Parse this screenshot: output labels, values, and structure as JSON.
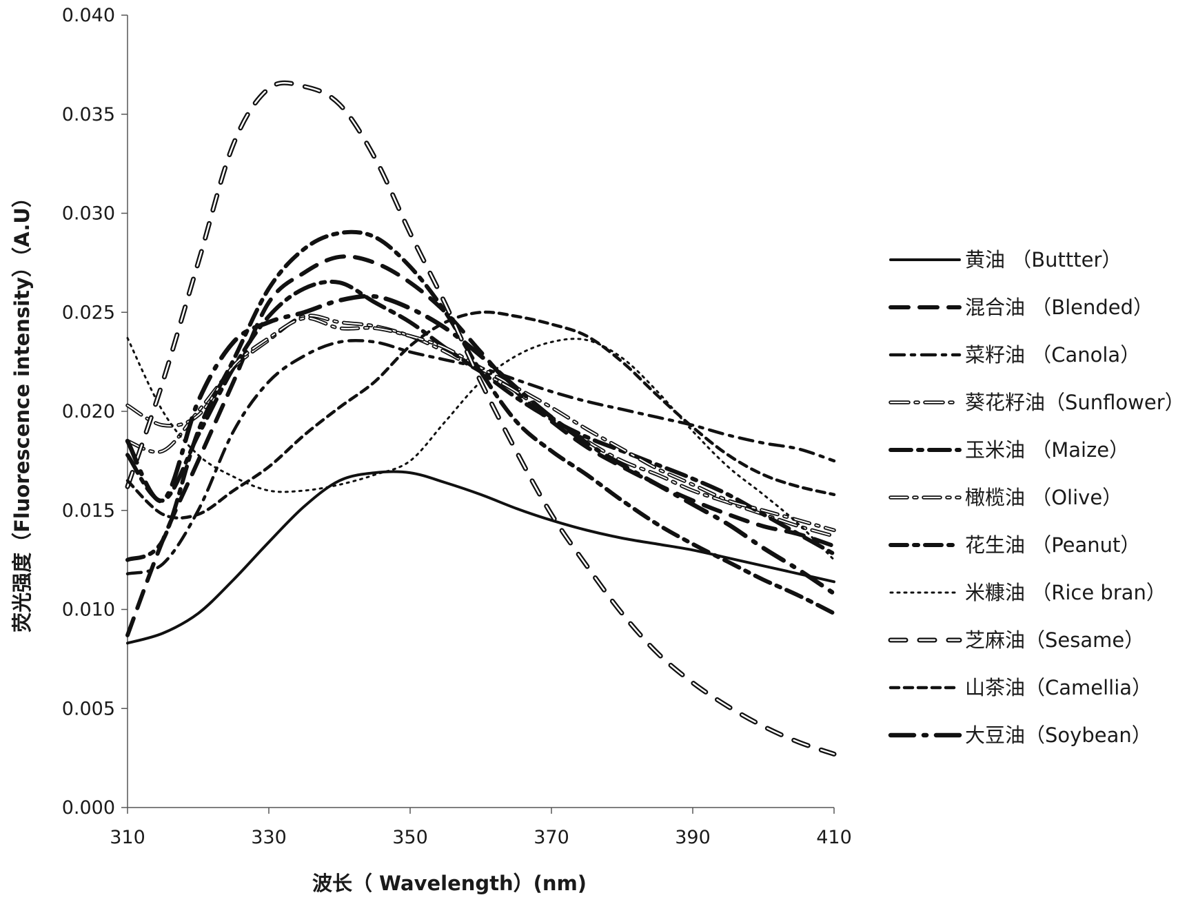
{
  "chart_data": {
    "type": "line",
    "xlabel": "波长（ Wavelength）(nm)",
    "ylabel": "荧光强度（Fluorescence intensity）（A.U）",
    "xlim": [
      310,
      410
    ],
    "ylim": [
      0,
      0.04
    ],
    "x_ticks": [
      "310",
      "330",
      "350",
      "370",
      "390",
      "410"
    ],
    "y_ticks": [
      "0.000",
      "0.005",
      "0.010",
      "0.015",
      "0.020",
      "0.025",
      "0.030",
      "0.035",
      "0.040"
    ],
    "grid": false,
    "legend_position": "right",
    "x": [
      310,
      315,
      320,
      325,
      330,
      335,
      340,
      345,
      350,
      355,
      360,
      365,
      370,
      375,
      380,
      385,
      390,
      395,
      400,
      405,
      410
    ],
    "series": [
      {
        "name": "黄油 （Buttter）",
        "values": [
          0.0083,
          0.0088,
          0.0098,
          0.0115,
          0.0134,
          0.0152,
          0.0165,
          0.0169,
          0.0169,
          0.0164,
          0.0158,
          0.0151,
          0.0145,
          0.014,
          0.0136,
          0.0133,
          0.013,
          0.0126,
          0.0122,
          0.0118,
          0.0114
        ]
      },
      {
        "name": "混合油 （Blended）",
        "values": [
          0.0087,
          0.0135,
          0.0175,
          0.0215,
          0.0255,
          0.027,
          0.0278,
          0.0275,
          0.0265,
          0.025,
          0.023,
          0.021,
          0.0195,
          0.0182,
          0.0172,
          0.0163,
          0.0155,
          0.0148,
          0.0142,
          0.0138,
          0.0132
        ]
      },
      {
        "name": "菜籽油 （Canola）",
        "values": [
          0.0118,
          0.0123,
          0.015,
          0.019,
          0.0215,
          0.0228,
          0.0235,
          0.0235,
          0.023,
          0.0226,
          0.0222,
          0.0216,
          0.021,
          0.0205,
          0.0201,
          0.0197,
          0.0193,
          0.0188,
          0.0184,
          0.0181,
          0.0175
        ]
      },
      {
        "name": "葵花籽油（Sunflower）",
        "values": [
          0.0185,
          0.018,
          0.02,
          0.0222,
          0.0236,
          0.0248,
          0.0245,
          0.0243,
          0.0238,
          0.023,
          0.022,
          0.021,
          0.0197,
          0.0185,
          0.0175,
          0.0168,
          0.016,
          0.0154,
          0.0148,
          0.0142,
          0.0137
        ]
      },
      {
        "name": "玉米油 （Maize）",
        "values": [
          0.0178,
          0.0155,
          0.0188,
          0.0222,
          0.0248,
          0.0262,
          0.0265,
          0.0255,
          0.0245,
          0.0232,
          0.022,
          0.0207,
          0.0196,
          0.0187,
          0.018,
          0.0173,
          0.0166,
          0.0158,
          0.0148,
          0.0138,
          0.0128
        ]
      },
      {
        "name": "橄榄油 （Olive）",
        "values": [
          0.0203,
          0.0193,
          0.0198,
          0.0223,
          0.0237,
          0.0247,
          0.0242,
          0.0242,
          0.0238,
          0.0232,
          0.0222,
          0.0212,
          0.0202,
          0.0191,
          0.0181,
          0.0171,
          0.0163,
          0.0155,
          0.015,
          0.0145,
          0.014
        ]
      },
      {
        "name": "花生油 （Peanut）",
        "values": [
          0.0125,
          0.0135,
          0.019,
          0.0226,
          0.0262,
          0.0282,
          0.029,
          0.0288,
          0.0273,
          0.025,
          0.022,
          0.0195,
          0.018,
          0.0168,
          0.0155,
          0.0143,
          0.0133,
          0.0124,
          0.0115,
          0.0107,
          0.0098
        ]
      },
      {
        "name": "米糠油 （Rice bran）",
        "values": [
          0.0237,
          0.02,
          0.0178,
          0.0167,
          0.016,
          0.016,
          0.0163,
          0.0168,
          0.0175,
          0.0195,
          0.0215,
          0.0228,
          0.0235,
          0.0236,
          0.0227,
          0.021,
          0.019,
          0.0172,
          0.0158,
          0.0143,
          0.0125
        ]
      },
      {
        "name": "芝麻油（Sesame）",
        "values": [
          0.0162,
          0.0215,
          0.0275,
          0.0335,
          0.0363,
          0.0364,
          0.0355,
          0.0328,
          0.029,
          0.0254,
          0.0215,
          0.018,
          0.0148,
          0.0122,
          0.0098,
          0.0078,
          0.0063,
          0.0051,
          0.0041,
          0.0033,
          0.0027
        ]
      },
      {
        "name": "山茶油（Camellia）",
        "values": [
          0.0165,
          0.0148,
          0.0148,
          0.016,
          0.0172,
          0.0188,
          0.0202,
          0.0215,
          0.0233,
          0.0245,
          0.025,
          0.0248,
          0.0244,
          0.0238,
          0.0225,
          0.0208,
          0.0192,
          0.0178,
          0.0168,
          0.0162,
          0.0158
        ]
      },
      {
        "name": "大豆油（Soybean）",
        "values": [
          0.0185,
          0.0155,
          0.0205,
          0.0235,
          0.0245,
          0.025,
          0.0256,
          0.0258,
          0.0252,
          0.0242,
          0.0228,
          0.0212,
          0.0197,
          0.0184,
          0.0173,
          0.0163,
          0.0153,
          0.0143,
          0.0131,
          0.012,
          0.0108
        ]
      }
    ]
  }
}
